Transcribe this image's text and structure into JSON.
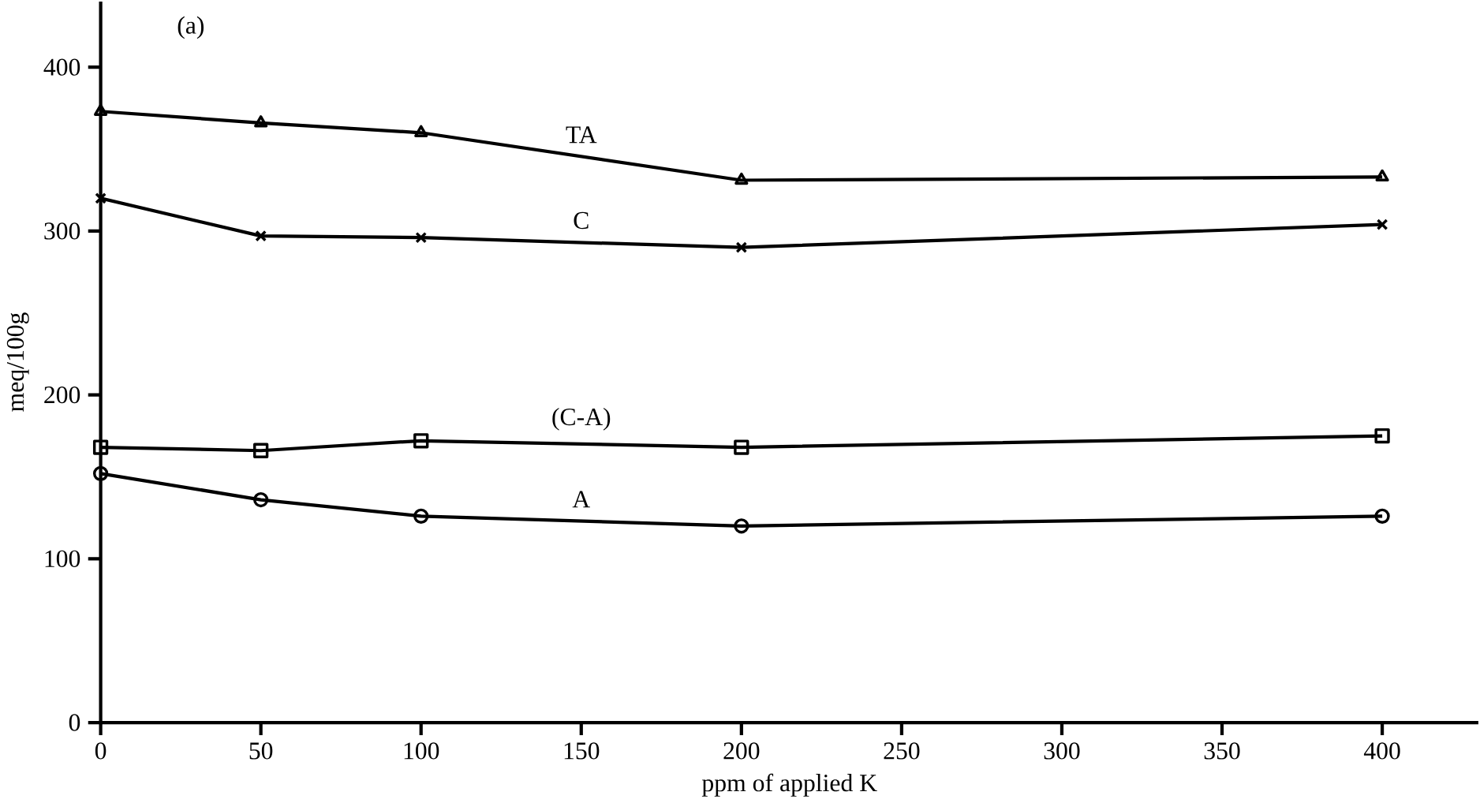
{
  "chart_data": {
    "type": "line",
    "title": "(a)",
    "xlabel": "ppm of applied K",
    "ylabel": "meq/100g",
    "x": [
      0,
      50,
      100,
      200,
      400
    ],
    "series": [
      {
        "name": "TA",
        "color": "#000000",
        "marker": "triangle",
        "values": [
          373,
          366,
          360,
          331,
          333
        ]
      },
      {
        "name": "C",
        "color": "#000000",
        "marker": "cross",
        "values": [
          320,
          297,
          296,
          290,
          304
        ]
      },
      {
        "name": "(C-A)",
        "color": "#000000",
        "marker": "square",
        "values": [
          168,
          166,
          172,
          168,
          175
        ]
      },
      {
        "name": "A",
        "color": "#000000",
        "marker": "circle",
        "values": [
          152,
          136,
          126,
          120,
          126
        ]
      }
    ],
    "xlim": [
      0,
      430
    ],
    "ylim": [
      0,
      440
    ],
    "xticks": [
      0,
      50,
      100,
      150,
      200,
      250,
      300,
      350,
      400
    ],
    "yticks": [
      0,
      100,
      200,
      300,
      400
    ],
    "grid": false,
    "line_style": "solid"
  }
}
